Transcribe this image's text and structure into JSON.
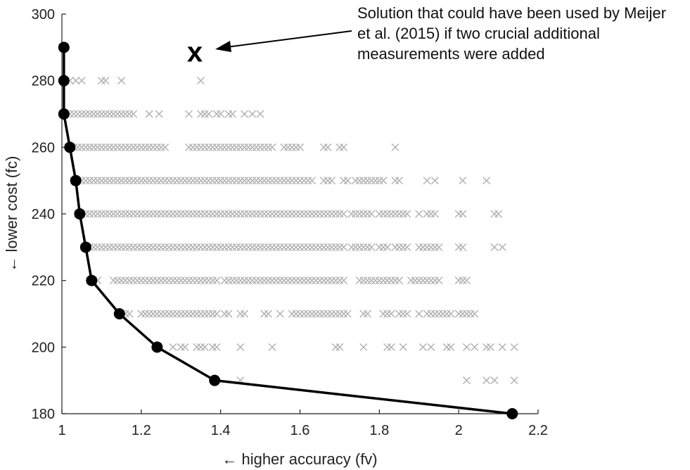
{
  "chart_data": {
    "type": "scatter",
    "xlabel": "← higher accuracy (fv)",
    "ylabel": "← lower cost (fc)",
    "xlim": [
      1,
      2.2
    ],
    "ylim": [
      180,
      300
    ],
    "xticks": [
      "1",
      "1.2",
      "1.4",
      "1.6",
      "1.8",
      "2",
      "2.2"
    ],
    "yticks": [
      "180",
      "200",
      "220",
      "240",
      "260",
      "280",
      "300"
    ],
    "grid": false,
    "series": [
      {
        "name": "",
        "marker": "x",
        "color": "#b0b0b0",
        "rows": [
          {
            "y": 280,
            "x": [
              1.01,
              1.02,
              1.035,
              1.05,
              1.1,
              1.11,
              1.15,
              1.35
            ]
          },
          {
            "y": 270,
            "x": [
              1.01,
              1.02,
              1.03,
              1.04,
              1.05,
              1.06,
              1.07,
              1.08,
              1.09,
              1.1,
              1.11,
              1.12,
              1.13,
              1.14,
              1.15,
              1.16,
              1.17,
              1.18,
              1.22,
              1.245,
              1.32,
              1.35,
              1.36,
              1.37,
              1.39,
              1.4,
              1.42,
              1.43,
              1.46,
              1.48,
              1.5
            ]
          },
          {
            "y": 260,
            "x": [
              1.02,
              1.03,
              1.04,
              1.05,
              1.06,
              1.07,
              1.08,
              1.09,
              1.1,
              1.11,
              1.12,
              1.13,
              1.14,
              1.15,
              1.16,
              1.17,
              1.18,
              1.19,
              1.2,
              1.21,
              1.22,
              1.23,
              1.24,
              1.25,
              1.26,
              1.32,
              1.33,
              1.34,
              1.35,
              1.36,
              1.37,
              1.38,
              1.39,
              1.4,
              1.41,
              1.42,
              1.43,
              1.44,
              1.45,
              1.46,
              1.47,
              1.48,
              1.49,
              1.5,
              1.51,
              1.52,
              1.53,
              1.56,
              1.57,
              1.58,
              1.59,
              1.6,
              1.66,
              1.67,
              1.7,
              1.71,
              1.84
            ]
          },
          {
            "y": 250,
            "x": [
              1.03,
              1.04,
              1.05,
              1.06,
              1.07,
              1.08,
              1.09,
              1.1,
              1.11,
              1.12,
              1.13,
              1.14,
              1.15,
              1.16,
              1.17,
              1.18,
              1.19,
              1.2,
              1.21,
              1.22,
              1.23,
              1.24,
              1.25,
              1.26,
              1.27,
              1.28,
              1.29,
              1.3,
              1.31,
              1.32,
              1.33,
              1.34,
              1.35,
              1.36,
              1.37,
              1.38,
              1.39,
              1.4,
              1.41,
              1.42,
              1.43,
              1.44,
              1.45,
              1.46,
              1.47,
              1.48,
              1.49,
              1.5,
              1.51,
              1.52,
              1.53,
              1.54,
              1.55,
              1.56,
              1.57,
              1.58,
              1.59,
              1.6,
              1.61,
              1.62,
              1.63,
              1.66,
              1.67,
              1.68,
              1.71,
              1.72,
              1.74,
              1.75,
              1.76,
              1.77,
              1.78,
              1.79,
              1.8,
              1.81,
              1.84,
              1.85,
              1.92,
              1.94,
              2.01,
              2.07
            ]
          },
          {
            "y": 240,
            "x": [
              1.04,
              1.05,
              1.06,
              1.07,
              1.08,
              1.09,
              1.1,
              1.11,
              1.12,
              1.13,
              1.14,
              1.15,
              1.16,
              1.17,
              1.18,
              1.19,
              1.2,
              1.21,
              1.22,
              1.23,
              1.24,
              1.25,
              1.26,
              1.27,
              1.28,
              1.29,
              1.3,
              1.31,
              1.32,
              1.33,
              1.34,
              1.35,
              1.36,
              1.37,
              1.38,
              1.39,
              1.4,
              1.41,
              1.42,
              1.43,
              1.44,
              1.45,
              1.46,
              1.47,
              1.48,
              1.49,
              1.5,
              1.51,
              1.52,
              1.53,
              1.54,
              1.55,
              1.56,
              1.57,
              1.58,
              1.59,
              1.6,
              1.61,
              1.62,
              1.63,
              1.64,
              1.65,
              1.66,
              1.67,
              1.68,
              1.69,
              1.7,
              1.71,
              1.73,
              1.74,
              1.75,
              1.76,
              1.77,
              1.78,
              1.8,
              1.81,
              1.82,
              1.83,
              1.84,
              1.85,
              1.86,
              1.87,
              1.9,
              1.92,
              1.93,
              1.94,
              2.0,
              2.01,
              2.09,
              2.1
            ]
          },
          {
            "y": 230,
            "x": [
              1.06,
              1.07,
              1.08,
              1.09,
              1.1,
              1.11,
              1.12,
              1.13,
              1.14,
              1.15,
              1.16,
              1.17,
              1.18,
              1.19,
              1.2,
              1.21,
              1.22,
              1.23,
              1.24,
              1.25,
              1.26,
              1.27,
              1.28,
              1.29,
              1.3,
              1.31,
              1.32,
              1.33,
              1.34,
              1.35,
              1.36,
              1.37,
              1.38,
              1.39,
              1.4,
              1.41,
              1.42,
              1.43,
              1.44,
              1.45,
              1.46,
              1.47,
              1.48,
              1.49,
              1.5,
              1.51,
              1.52,
              1.53,
              1.54,
              1.55,
              1.56,
              1.57,
              1.58,
              1.59,
              1.6,
              1.61,
              1.62,
              1.63,
              1.64,
              1.65,
              1.66,
              1.67,
              1.68,
              1.69,
              1.7,
              1.71,
              1.73,
              1.74,
              1.75,
              1.76,
              1.77,
              1.78,
              1.8,
              1.81,
              1.82,
              1.84,
              1.85,
              1.86,
              1.87,
              1.9,
              1.91,
              1.92,
              1.93,
              1.94,
              1.95,
              2.0,
              2.01,
              2.09,
              2.11
            ]
          },
          {
            "y": 220,
            "x": [
              1.07,
              1.08,
              1.09,
              1.13,
              1.14,
              1.15,
              1.16,
              1.17,
              1.18,
              1.19,
              1.2,
              1.21,
              1.22,
              1.23,
              1.24,
              1.25,
              1.26,
              1.27,
              1.28,
              1.29,
              1.3,
              1.31,
              1.32,
              1.33,
              1.34,
              1.35,
              1.36,
              1.37,
              1.38,
              1.39,
              1.41,
              1.42,
              1.43,
              1.44,
              1.45,
              1.46,
              1.47,
              1.48,
              1.49,
              1.5,
              1.51,
              1.52,
              1.53,
              1.54,
              1.55,
              1.56,
              1.57,
              1.58,
              1.59,
              1.6,
              1.61,
              1.62,
              1.63,
              1.64,
              1.65,
              1.66,
              1.67,
              1.68,
              1.69,
              1.7,
              1.71,
              1.75,
              1.76,
              1.77,
              1.78,
              1.79,
              1.8,
              1.81,
              1.82,
              1.83,
              1.84,
              1.85,
              1.88,
              1.89,
              1.9,
              1.91,
              1.92,
              1.93,
              1.94,
              1.95,
              2.0,
              2.01,
              2.02
            ]
          },
          {
            "y": 210,
            "x": [
              1.15,
              1.16,
              1.17,
              1.2,
              1.21,
              1.22,
              1.23,
              1.24,
              1.25,
              1.26,
              1.27,
              1.28,
              1.29,
              1.3,
              1.31,
              1.32,
              1.33,
              1.34,
              1.35,
              1.36,
              1.37,
              1.38,
              1.39,
              1.41,
              1.42,
              1.45,
              1.46,
              1.51,
              1.52,
              1.55,
              1.58,
              1.59,
              1.6,
              1.61,
              1.62,
              1.63,
              1.64,
              1.65,
              1.66,
              1.67,
              1.68,
              1.69,
              1.7,
              1.71,
              1.72,
              1.76,
              1.77,
              1.81,
              1.82,
              1.83,
              1.85,
              1.86,
              1.87,
              1.9,
              1.92,
              1.93,
              1.94,
              1.95,
              1.96,
              1.97,
              1.98,
              2.0,
              2.01,
              2.02,
              2.03,
              2.04
            ]
          },
          {
            "y": 200,
            "x": [
              1.28,
              1.3,
              1.31,
              1.34,
              1.35,
              1.36,
              1.38,
              1.39,
              1.45,
              1.53,
              1.69,
              1.7,
              1.76,
              1.82,
              1.83,
              1.86,
              1.91,
              1.93,
              1.97,
              1.98,
              2.02,
              2.04,
              2.07,
              2.08,
              2.11,
              2.14
            ]
          },
          {
            "y": 190,
            "x": [
              1.45,
              2.02,
              2.07,
              2.09,
              2.14
            ]
          }
        ]
      },
      {
        "name": "",
        "marker": "o",
        "color": "#000000",
        "points": [
          {
            "x": 1.005,
            "y": 290
          },
          {
            "x": 1.005,
            "y": 280
          },
          {
            "x": 1.005,
            "y": 270
          },
          {
            "x": 1.02,
            "y": 260
          },
          {
            "x": 1.035,
            "y": 250
          },
          {
            "x": 1.045,
            "y": 240
          },
          {
            "x": 1.06,
            "y": 230
          },
          {
            "x": 1.075,
            "y": 220
          },
          {
            "x": 1.145,
            "y": 210
          },
          {
            "x": 1.24,
            "y": 200
          },
          {
            "x": 1.385,
            "y": 190
          },
          {
            "x": 2.135,
            "y": 180
          }
        ]
      }
    ],
    "annotation": {
      "marker_label": "x",
      "marker_point": {
        "x": 1.335,
        "y": 288
      },
      "lines": [
        "Solution that could have been used by Meijer",
        "et al. (2015) if two crucial additional",
        "measurements were added"
      ]
    }
  }
}
